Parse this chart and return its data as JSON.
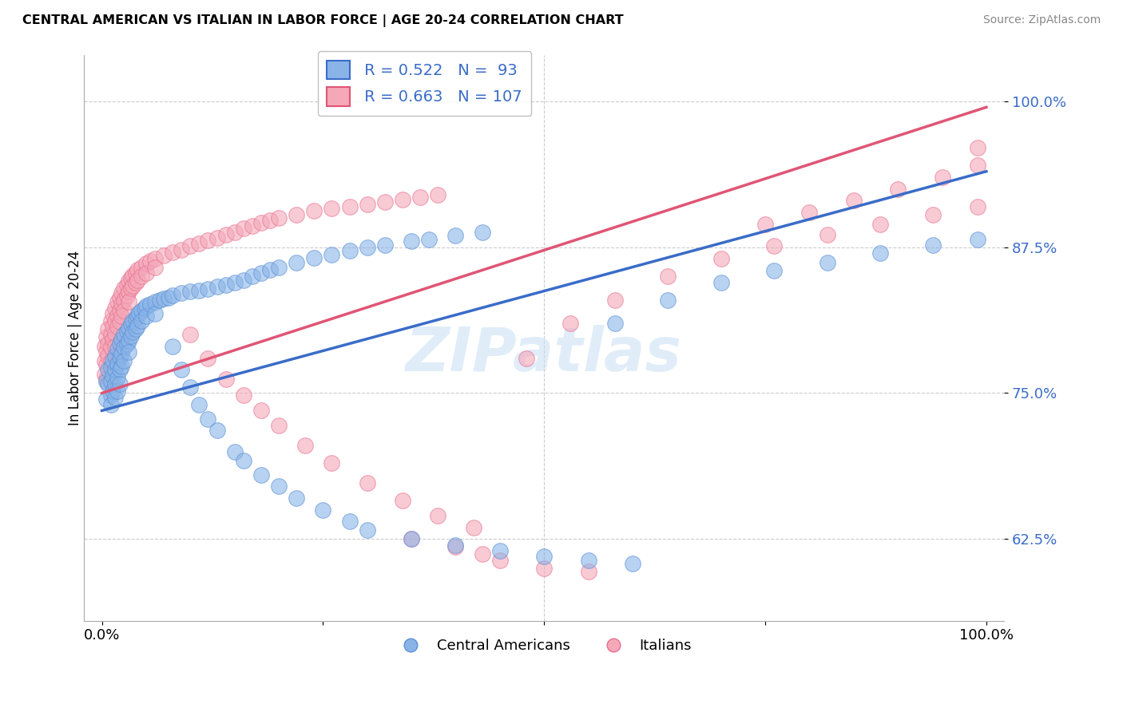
{
  "title": "CENTRAL AMERICAN VS ITALIAN IN LABOR FORCE | AGE 20-24 CORRELATION CHART",
  "source": "Source: ZipAtlas.com",
  "ylabel": "In Labor Force | Age 20-24",
  "xlim": [
    -0.02,
    1.02
  ],
  "ylim": [
    0.555,
    1.04
  ],
  "yticks": [
    0.625,
    0.75,
    0.875,
    1.0
  ],
  "ytick_labels": [
    "62.5%",
    "75.0%",
    "87.5%",
    "100.0%"
  ],
  "xticks": [
    0.0,
    0.25,
    0.5,
    0.75,
    1.0
  ],
  "xtick_labels": [
    "0.0%",
    "",
    "",
    "",
    "100.0%"
  ],
  "blue_R": 0.522,
  "blue_N": 93,
  "pink_R": 0.663,
  "pink_N": 107,
  "blue_color": "#8ab4e8",
  "pink_color": "#f4a8b8",
  "blue_edge_color": "#5a8fd4",
  "pink_edge_color": "#e87090",
  "blue_line_color": "#3a6cc8",
  "pink_line_color": "#e05575",
  "label_color": "#3a6cc8",
  "legend_blue_label": "Central Americans",
  "legend_pink_label": "Italians",
  "watermark": "ZIPatlas",
  "blue_scatter": [
    [
      0.005,
      0.76
    ],
    [
      0.005,
      0.745
    ],
    [
      0.007,
      0.77
    ],
    [
      0.007,
      0.758
    ],
    [
      0.01,
      0.772
    ],
    [
      0.01,
      0.76
    ],
    [
      0.01,
      0.748
    ],
    [
      0.01,
      0.74
    ],
    [
      0.012,
      0.778
    ],
    [
      0.012,
      0.765
    ],
    [
      0.012,
      0.752
    ],
    [
      0.015,
      0.782
    ],
    [
      0.015,
      0.77
    ],
    [
      0.015,
      0.758
    ],
    [
      0.015,
      0.746
    ],
    [
      0.018,
      0.788
    ],
    [
      0.018,
      0.775
    ],
    [
      0.018,
      0.763
    ],
    [
      0.018,
      0.752
    ],
    [
      0.02,
      0.793
    ],
    [
      0.02,
      0.781
    ],
    [
      0.02,
      0.77
    ],
    [
      0.02,
      0.758
    ],
    [
      0.022,
      0.796
    ],
    [
      0.022,
      0.784
    ],
    [
      0.022,
      0.773
    ],
    [
      0.025,
      0.8
    ],
    [
      0.025,
      0.789
    ],
    [
      0.025,
      0.778
    ],
    [
      0.028,
      0.803
    ],
    [
      0.028,
      0.792
    ],
    [
      0.03,
      0.806
    ],
    [
      0.03,
      0.795
    ],
    [
      0.03,
      0.785
    ],
    [
      0.033,
      0.809
    ],
    [
      0.033,
      0.799
    ],
    [
      0.035,
      0.812
    ],
    [
      0.035,
      0.802
    ],
    [
      0.038,
      0.814
    ],
    [
      0.038,
      0.805
    ],
    [
      0.04,
      0.817
    ],
    [
      0.04,
      0.808
    ],
    [
      0.042,
      0.819
    ],
    [
      0.045,
      0.821
    ],
    [
      0.045,
      0.812
    ],
    [
      0.048,
      0.823
    ],
    [
      0.05,
      0.825
    ],
    [
      0.05,
      0.816
    ],
    [
      0.055,
      0.826
    ],
    [
      0.06,
      0.828
    ],
    [
      0.06,
      0.818
    ],
    [
      0.065,
      0.83
    ],
    [
      0.07,
      0.831
    ],
    [
      0.075,
      0.832
    ],
    [
      0.08,
      0.834
    ],
    [
      0.09,
      0.836
    ],
    [
      0.1,
      0.837
    ],
    [
      0.11,
      0.838
    ],
    [
      0.12,
      0.839
    ],
    [
      0.13,
      0.841
    ],
    [
      0.14,
      0.843
    ],
    [
      0.15,
      0.845
    ],
    [
      0.16,
      0.847
    ],
    [
      0.17,
      0.85
    ],
    [
      0.18,
      0.853
    ],
    [
      0.19,
      0.856
    ],
    [
      0.2,
      0.858
    ],
    [
      0.22,
      0.862
    ],
    [
      0.24,
      0.866
    ],
    [
      0.26,
      0.869
    ],
    [
      0.28,
      0.872
    ],
    [
      0.3,
      0.875
    ],
    [
      0.32,
      0.877
    ],
    [
      0.35,
      0.88
    ],
    [
      0.37,
      0.882
    ],
    [
      0.4,
      0.885
    ],
    [
      0.43,
      0.888
    ],
    [
      0.08,
      0.79
    ],
    [
      0.09,
      0.77
    ],
    [
      0.1,
      0.755
    ],
    [
      0.11,
      0.74
    ],
    [
      0.12,
      0.728
    ],
    [
      0.13,
      0.718
    ],
    [
      0.15,
      0.7
    ],
    [
      0.16,
      0.692
    ],
    [
      0.18,
      0.68
    ],
    [
      0.2,
      0.67
    ],
    [
      0.22,
      0.66
    ],
    [
      0.25,
      0.65
    ],
    [
      0.28,
      0.64
    ],
    [
      0.3,
      0.633
    ],
    [
      0.35,
      0.625
    ],
    [
      0.4,
      0.62
    ],
    [
      0.45,
      0.615
    ],
    [
      0.5,
      0.61
    ],
    [
      0.55,
      0.607
    ],
    [
      0.6,
      0.604
    ],
    [
      0.58,
      0.81
    ],
    [
      0.64,
      0.83
    ],
    [
      0.7,
      0.845
    ],
    [
      0.76,
      0.855
    ],
    [
      0.82,
      0.862
    ],
    [
      0.88,
      0.87
    ],
    [
      0.94,
      0.877
    ],
    [
      0.99,
      0.882
    ]
  ],
  "pink_scatter": [
    [
      0.003,
      0.79
    ],
    [
      0.003,
      0.778
    ],
    [
      0.003,
      0.766
    ],
    [
      0.005,
      0.798
    ],
    [
      0.005,
      0.786
    ],
    [
      0.005,
      0.774
    ],
    [
      0.005,
      0.762
    ],
    [
      0.007,
      0.805
    ],
    [
      0.007,
      0.793
    ],
    [
      0.007,
      0.782
    ],
    [
      0.01,
      0.812
    ],
    [
      0.01,
      0.8
    ],
    [
      0.01,
      0.789
    ],
    [
      0.01,
      0.778
    ],
    [
      0.012,
      0.818
    ],
    [
      0.012,
      0.807
    ],
    [
      0.012,
      0.796
    ],
    [
      0.015,
      0.823
    ],
    [
      0.015,
      0.812
    ],
    [
      0.015,
      0.801
    ],
    [
      0.015,
      0.79
    ],
    [
      0.018,
      0.828
    ],
    [
      0.018,
      0.817
    ],
    [
      0.018,
      0.807
    ],
    [
      0.02,
      0.832
    ],
    [
      0.02,
      0.821
    ],
    [
      0.02,
      0.811
    ],
    [
      0.022,
      0.836
    ],
    [
      0.022,
      0.826
    ],
    [
      0.022,
      0.816
    ],
    [
      0.025,
      0.84
    ],
    [
      0.025,
      0.83
    ],
    [
      0.025,
      0.821
    ],
    [
      0.028,
      0.843
    ],
    [
      0.028,
      0.834
    ],
    [
      0.03,
      0.846
    ],
    [
      0.03,
      0.837
    ],
    [
      0.03,
      0.828
    ],
    [
      0.033,
      0.849
    ],
    [
      0.033,
      0.84
    ],
    [
      0.035,
      0.851
    ],
    [
      0.035,
      0.842
    ],
    [
      0.038,
      0.853
    ],
    [
      0.038,
      0.845
    ],
    [
      0.04,
      0.856
    ],
    [
      0.04,
      0.847
    ],
    [
      0.045,
      0.858
    ],
    [
      0.045,
      0.85
    ],
    [
      0.05,
      0.861
    ],
    [
      0.05,
      0.853
    ],
    [
      0.055,
      0.863
    ],
    [
      0.06,
      0.865
    ],
    [
      0.06,
      0.858
    ],
    [
      0.07,
      0.868
    ],
    [
      0.08,
      0.871
    ],
    [
      0.09,
      0.873
    ],
    [
      0.1,
      0.876
    ],
    [
      0.11,
      0.878
    ],
    [
      0.12,
      0.881
    ],
    [
      0.13,
      0.883
    ],
    [
      0.14,
      0.886
    ],
    [
      0.15,
      0.888
    ],
    [
      0.16,
      0.891
    ],
    [
      0.17,
      0.893
    ],
    [
      0.18,
      0.896
    ],
    [
      0.19,
      0.898
    ],
    [
      0.2,
      0.9
    ],
    [
      0.22,
      0.903
    ],
    [
      0.24,
      0.906
    ],
    [
      0.26,
      0.908
    ],
    [
      0.28,
      0.91
    ],
    [
      0.3,
      0.912
    ],
    [
      0.32,
      0.914
    ],
    [
      0.34,
      0.916
    ],
    [
      0.36,
      0.918
    ],
    [
      0.38,
      0.92
    ],
    [
      0.1,
      0.8
    ],
    [
      0.12,
      0.78
    ],
    [
      0.14,
      0.762
    ],
    [
      0.16,
      0.748
    ],
    [
      0.18,
      0.735
    ],
    [
      0.2,
      0.722
    ],
    [
      0.23,
      0.705
    ],
    [
      0.26,
      0.69
    ],
    [
      0.3,
      0.673
    ],
    [
      0.34,
      0.658
    ],
    [
      0.38,
      0.645
    ],
    [
      0.42,
      0.635
    ],
    [
      0.35,
      0.625
    ],
    [
      0.4,
      0.618
    ],
    [
      0.43,
      0.612
    ],
    [
      0.45,
      0.607
    ],
    [
      0.5,
      0.6
    ],
    [
      0.55,
      0.597
    ],
    [
      0.48,
      0.78
    ],
    [
      0.53,
      0.81
    ],
    [
      0.58,
      0.83
    ],
    [
      0.64,
      0.85
    ],
    [
      0.7,
      0.865
    ],
    [
      0.76,
      0.876
    ],
    [
      0.82,
      0.886
    ],
    [
      0.88,
      0.895
    ],
    [
      0.94,
      0.903
    ],
    [
      0.99,
      0.91
    ],
    [
      0.75,
      0.895
    ],
    [
      0.8,
      0.905
    ],
    [
      0.85,
      0.915
    ],
    [
      0.9,
      0.925
    ],
    [
      0.95,
      0.935
    ],
    [
      0.99,
      0.945
    ],
    [
      0.99,
      0.96
    ]
  ],
  "blue_line": [
    [
      0.0,
      0.735
    ],
    [
      1.0,
      0.94
    ]
  ],
  "pink_line": [
    [
      0.0,
      0.75
    ],
    [
      1.0,
      0.995
    ]
  ]
}
